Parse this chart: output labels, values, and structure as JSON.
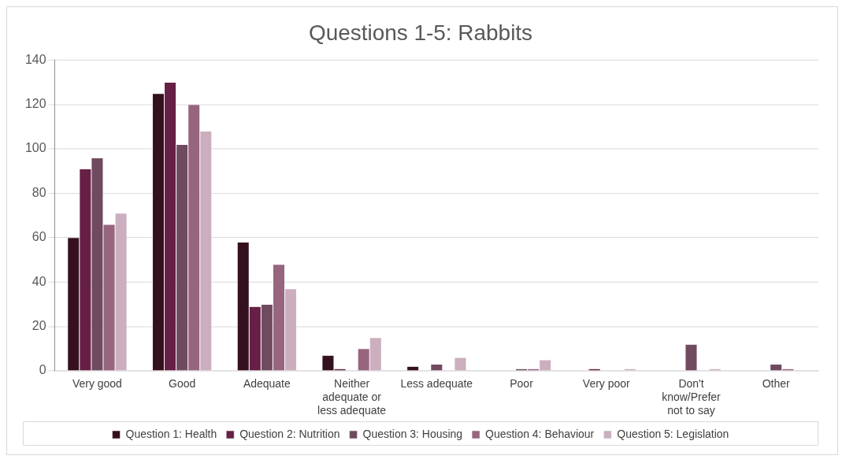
{
  "chart_data": {
    "type": "bar",
    "title": "Questions 1-5: Rabbits",
    "categories": [
      "Very good",
      "Good",
      "Adequate",
      "Neither adequate or less adequate",
      "Less adequate",
      "Poor",
      "Very poor",
      "Don't know/Prefer not to say",
      "Other"
    ],
    "series": [
      {
        "name": "Question 1: Health",
        "color": "#35111f",
        "values": [
          60,
          125,
          58,
          7,
          2,
          0,
          0,
          0,
          0
        ]
      },
      {
        "name": "Question 2: Nutrition",
        "color": "#661f45",
        "values": [
          91,
          130,
          29,
          1,
          0,
          0,
          1,
          0,
          0
        ]
      },
      {
        "name": "Question 3: Housing",
        "color": "#704b60",
        "values": [
          96,
          102,
          30,
          0,
          3,
          1,
          0,
          12,
          3
        ]
      },
      {
        "name": "Question 4: Behaviour",
        "color": "#98657f",
        "values": [
          66,
          120,
          48,
          10,
          0,
          1,
          0,
          0,
          1
        ]
      },
      {
        "name": "Question 5: Legislation",
        "color": "#cbafbf",
        "values": [
          71,
          108,
          37,
          15,
          6,
          5,
          1,
          1,
          0
        ]
      }
    ],
    "ylim": [
      0,
      140
    ],
    "yticks": [
      0,
      20,
      40,
      60,
      80,
      100,
      120,
      140
    ],
    "grid": "y",
    "legend": "bottom"
  }
}
